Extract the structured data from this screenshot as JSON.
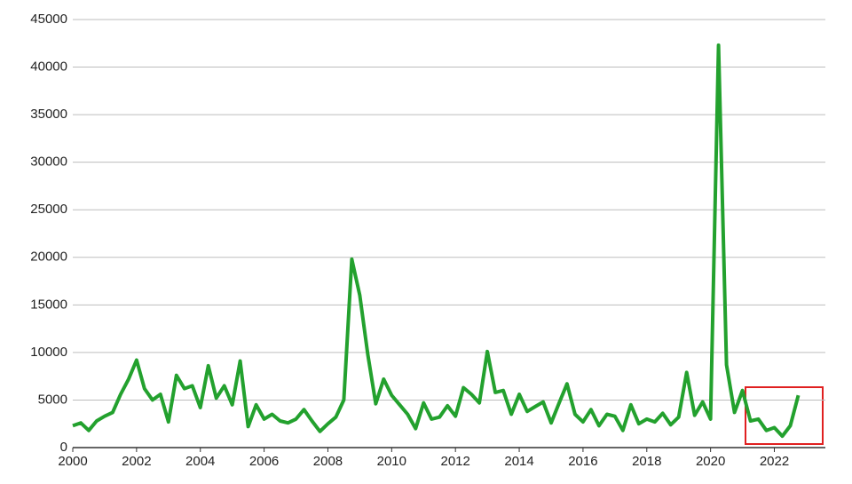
{
  "chart_data": {
    "type": "line",
    "x": [
      2000,
      2000.25,
      2000.5,
      2000.75,
      2001,
      2001.25,
      2001.5,
      2001.75,
      2002,
      2002.25,
      2002.5,
      2002.75,
      2003,
      2003.25,
      2003.5,
      2003.75,
      2004,
      2004.25,
      2004.5,
      2004.75,
      2005,
      2005.25,
      2005.5,
      2005.75,
      2006,
      2006.25,
      2006.5,
      2006.75,
      2007,
      2007.25,
      2007.5,
      2007.75,
      2008,
      2008.25,
      2008.5,
      2008.75,
      2009,
      2009.25,
      2009.5,
      2009.75,
      2010,
      2010.25,
      2010.5,
      2010.75,
      2011,
      2011.25,
      2011.5,
      2011.75,
      2012,
      2012.25,
      2012.5,
      2012.75,
      2013,
      2013.25,
      2013.5,
      2013.75,
      2014,
      2014.25,
      2014.5,
      2014.75,
      2015,
      2015.25,
      2015.5,
      2015.75,
      2016,
      2016.25,
      2016.5,
      2016.75,
      2017,
      2017.25,
      2017.5,
      2017.75,
      2018,
      2018.25,
      2018.5,
      2018.75,
      2019,
      2019.25,
      2019.5,
      2019.75,
      2020,
      2020.25,
      2020.5,
      2020.75,
      2021,
      2021.25,
      2021.5,
      2021.75,
      2022,
      2022.25,
      2022.5,
      2022.75
    ],
    "values": [
      2300,
      2600,
      1800,
      2800,
      3300,
      3700,
      5600,
      7200,
      9200,
      6200,
      5000,
      5600,
      2700,
      7600,
      6200,
      6500,
      4200,
      8600,
      5200,
      6500,
      4500,
      9100,
      2200,
      4500,
      3000,
      3500,
      2800,
      2600,
      3000,
      4000,
      2800,
      1700,
      2500,
      3200,
      5000,
      19800,
      16000,
      9800,
      4600,
      7200,
      5500,
      4500,
      3500,
      2000,
      4700,
      3000,
      3200,
      4400,
      3300,
      6300,
      5600,
      4700,
      10100,
      5800,
      6000,
      3500,
      5600,
      3800,
      4300,
      4800,
      2600,
      4700,
      6700,
      3500,
      2700,
      4000,
      2300,
      3500,
      3300,
      1800,
      4500,
      2500,
      3000,
      2700,
      3600,
      2400,
      3200,
      7900,
      3400,
      4800,
      3000,
      42300,
      8700,
      3700,
      6000,
      2800,
      3000,
      1800,
      2100,
      1200,
      2300,
      5500
    ],
    "color": "#23a12e",
    "xlim": [
      2000,
      2023.6
    ],
    "xticks": [
      2000,
      2002,
      2004,
      2006,
      2008,
      2010,
      2012,
      2014,
      2016,
      2018,
      2020,
      2022
    ],
    "ylim": [
      0,
      45000
    ],
    "yticks": [
      0,
      5000,
      10000,
      15000,
      20000,
      25000,
      30000,
      35000,
      40000,
      45000
    ],
    "grid": true
  }
}
